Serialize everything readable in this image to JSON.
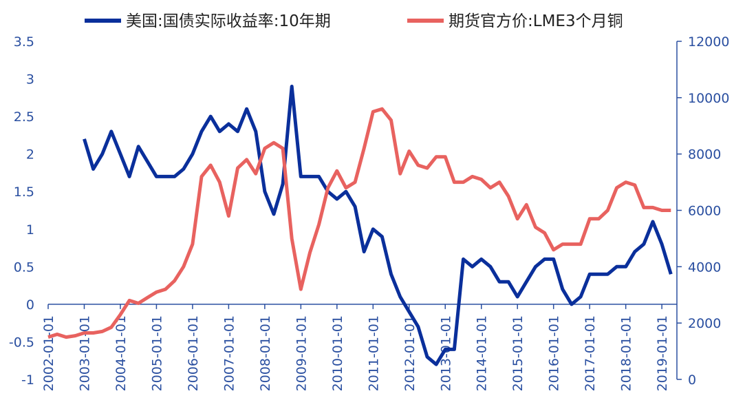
{
  "chart_data": {
    "type": "line",
    "x": [
      "2002-01-01",
      "2002-04-01",
      "2002-07-01",
      "2002-10-01",
      "2003-01-01",
      "2003-04-01",
      "2003-07-01",
      "2003-10-01",
      "2004-01-01",
      "2004-04-01",
      "2004-07-01",
      "2004-10-01",
      "2005-01-01",
      "2005-04-01",
      "2005-07-01",
      "2005-10-01",
      "2006-01-01",
      "2006-04-01",
      "2006-07-01",
      "2006-10-01",
      "2007-01-01",
      "2007-04-01",
      "2007-07-01",
      "2007-10-01",
      "2008-01-01",
      "2008-04-01",
      "2008-07-01",
      "2008-10-01",
      "2009-01-01",
      "2009-04-01",
      "2009-07-01",
      "2009-10-01",
      "2010-01-01",
      "2010-04-01",
      "2010-07-01",
      "2010-10-01",
      "2011-01-01",
      "2011-04-01",
      "2011-07-01",
      "2011-10-01",
      "2012-01-01",
      "2012-04-01",
      "2012-07-01",
      "2012-10-01",
      "2013-01-01",
      "2013-04-01",
      "2013-07-01",
      "2013-10-01",
      "2014-01-01",
      "2014-04-01",
      "2014-07-01",
      "2014-10-01",
      "2015-01-01",
      "2015-04-01",
      "2015-07-01",
      "2015-10-01",
      "2016-01-01",
      "2016-04-01",
      "2016-07-01",
      "2016-10-01",
      "2017-01-01",
      "2017-04-01",
      "2017-07-01",
      "2017-10-01",
      "2018-01-01",
      "2018-04-01",
      "2018-07-01",
      "2018-10-01",
      "2019-01-01",
      "2019-04-01"
    ],
    "series": [
      {
        "name": "美国:国债实际收益率:10年期",
        "color": "#0a2f9b",
        "axis": "y",
        "values": [
          null,
          null,
          null,
          null,
          2.2,
          1.8,
          2.0,
          2.3,
          2.0,
          1.7,
          2.1,
          1.9,
          1.7,
          1.7,
          1.7,
          1.8,
          2.0,
          2.3,
          2.5,
          2.3,
          2.4,
          2.3,
          2.6,
          2.3,
          1.5,
          1.2,
          1.6,
          2.9,
          1.7,
          1.7,
          1.7,
          1.5,
          1.4,
          1.5,
          1.3,
          0.7,
          1.0,
          0.9,
          0.4,
          0.1,
          -0.1,
          -0.3,
          -0.7,
          -0.8,
          -0.6,
          -0.6,
          0.6,
          0.5,
          0.6,
          0.5,
          0.3,
          0.3,
          0.1,
          0.3,
          0.5,
          0.6,
          0.6,
          0.2,
          0.0,
          0.1,
          0.4,
          0.4,
          0.4,
          0.5,
          0.5,
          0.7,
          0.8,
          1.1,
          0.8,
          0.4
        ]
      },
      {
        "name": "期货官方价:LME3个月铜",
        "color": "#e8625f",
        "axis": "y2",
        "values": [
          1500,
          1600,
          1500,
          1550,
          1650,
          1650,
          1700,
          1850,
          2300,
          2800,
          2700,
          2900,
          3100,
          3200,
          3500,
          4000,
          4800,
          7200,
          7600,
          7000,
          5800,
          7500,
          7800,
          7300,
          8200,
          8400,
          8200,
          5000,
          3200,
          4500,
          5500,
          6800,
          7400,
          6800,
          7000,
          8200,
          9500,
          9600,
          9200,
          7300,
          8100,
          7600,
          7500,
          7900,
          7900,
          7000,
          7000,
          7200,
          7100,
          6800,
          7000,
          6500,
          5700,
          6200,
          5400,
          5200,
          4600,
          4800,
          4800,
          4800,
          5700,
          5700,
          6000,
          6800,
          7000,
          6900,
          6100,
          6100,
          6000,
          6000
        ]
      }
    ],
    "xlim": [
      "2002-01-01",
      "2019-06-01"
    ],
    "xticks": [
      "2002-01-01",
      "2003-01-01",
      "2004-01-01",
      "2005-01-01",
      "2006-01-01",
      "2007-01-01",
      "2008-01-01",
      "2009-01-01",
      "2010-01-01",
      "2011-01-01",
      "2012-01-01",
      "2013-01-01",
      "2014-01-01",
      "2015-01-01",
      "2016-01-01",
      "2017-01-01",
      "2018-01-01",
      "2019-01-01"
    ],
    "ylim": [
      -1,
      3.5
    ],
    "yticks": [
      -1,
      -0.5,
      0,
      0.5,
      1,
      1.5,
      2,
      2.5,
      3,
      3.5
    ],
    "y2lim": [
      0,
      12000
    ],
    "y2ticks": [
      0,
      2000,
      4000,
      6000,
      8000,
      10000,
      12000
    ]
  }
}
